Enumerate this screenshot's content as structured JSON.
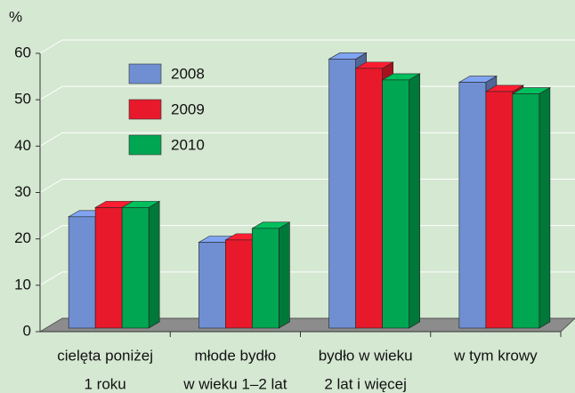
{
  "chart_data": {
    "type": "bar3d",
    "y_label": "%",
    "categories": [
      [
        "cielęta poniżej",
        "1 roku"
      ],
      [
        "młode bydło",
        "w wieku 1–2 lat"
      ],
      [
        "bydło w wieku",
        "2 lat i więcej"
      ],
      [
        "w tym krowy"
      ]
    ],
    "series": [
      {
        "name": "2008",
        "color": "#6f8fd2",
        "values": [
          24,
          18.5,
          58,
          53
        ]
      },
      {
        "name": "2009",
        "color": "#e8192b",
        "values": [
          26,
          19,
          56,
          51
        ]
      },
      {
        "name": "2010",
        "color": "#00a651",
        "values": [
          26,
          21.5,
          53.5,
          50.5
        ]
      }
    ],
    "ylim": [
      0,
      60
    ],
    "yticks": [
      0,
      10,
      20,
      30,
      40,
      50,
      60
    ],
    "grid": true,
    "legend": "upper left"
  }
}
